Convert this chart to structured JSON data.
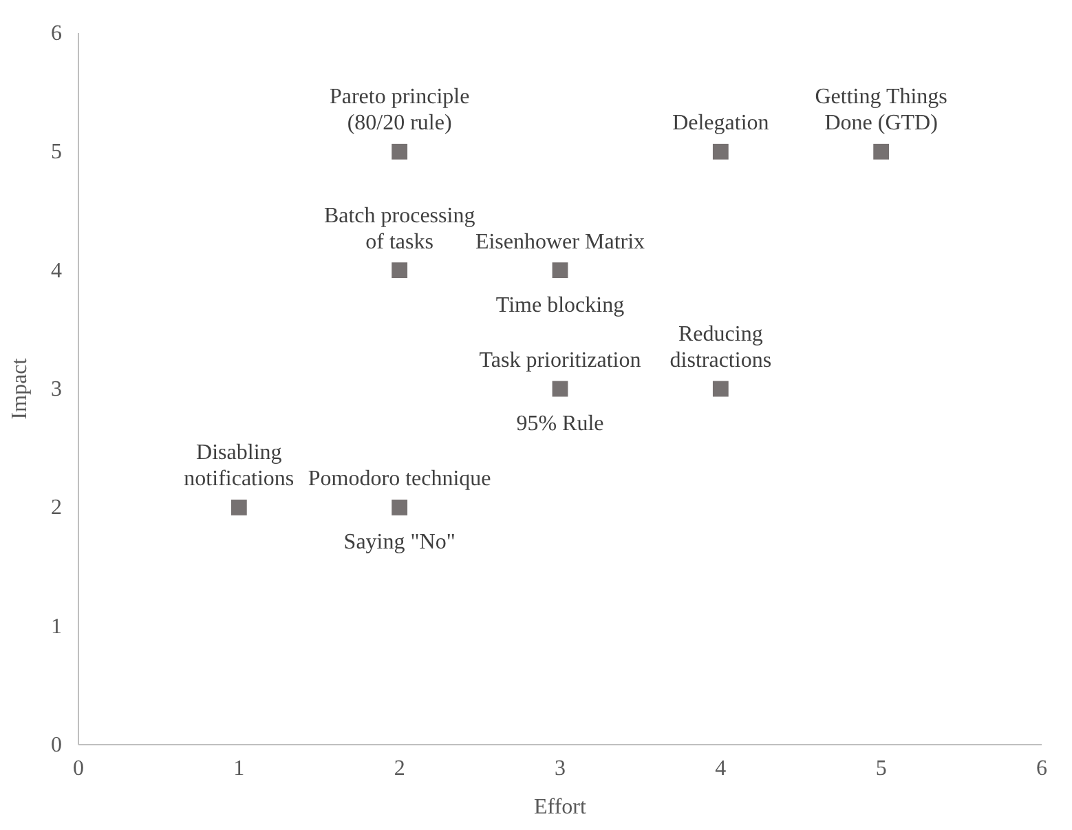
{
  "chart_data": {
    "type": "scatter",
    "xlabel": "Effort",
    "ylabel": "Impact",
    "xlim": [
      0,
      6
    ],
    "ylim": [
      0,
      6
    ],
    "xticks": [
      0,
      1,
      2,
      3,
      4,
      5,
      6
    ],
    "yticks": [
      0,
      1,
      2,
      3,
      4,
      5,
      6
    ],
    "grid": false,
    "marker": "square",
    "series": [
      {
        "color": "#767171",
        "x": [
          2,
          4,
          5,
          2,
          3,
          3,
          4,
          1,
          2
        ],
        "values": [
          5,
          5,
          5,
          4,
          4,
          3,
          3,
          2,
          2
        ]
      }
    ],
    "annotations": [
      {
        "text": "Pareto principle (80/20 rule)",
        "x": 2,
        "y": 5
      },
      {
        "text": "Delegation",
        "x": 4,
        "y": 5
      },
      {
        "text": "Getting Things Done (GTD)",
        "x": 5,
        "y": 5
      },
      {
        "text": "Batch processing of tasks",
        "x": 2,
        "y": 4
      },
      {
        "text": "Eisenhower Matrix",
        "x": 3,
        "y": 4
      },
      {
        "text": "Time blocking",
        "x": 3,
        "y": 4
      },
      {
        "text": "Task prioritization",
        "x": 3,
        "y": 3
      },
      {
        "text": "95% Rule",
        "x": 3,
        "y": 3
      },
      {
        "text": "Reducing distractions",
        "x": 4,
        "y": 3
      },
      {
        "text": "Disabling notifications",
        "x": 1,
        "y": 2
      },
      {
        "text": "Pomodoro technique",
        "x": 2,
        "y": 2
      },
      {
        "text": "Saying \"No\"",
        "x": 2,
        "y": 2
      }
    ]
  }
}
